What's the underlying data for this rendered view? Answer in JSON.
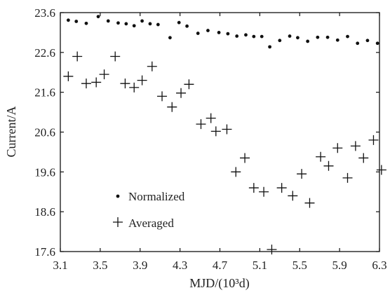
{
  "chart_data": {
    "type": "scatter",
    "title": "",
    "xlabel": "MJD/(10³d)",
    "ylabel": "Current/A",
    "xlim": [
      3.1,
      6.3
    ],
    "ylim": [
      17.6,
      23.6
    ],
    "xticks": [
      "3.1",
      "3.5",
      "3.9",
      "4.3",
      "4.7",
      "5.1",
      "5.5",
      "5.9",
      "6.3"
    ],
    "yticks": [
      "17.6",
      "18.6",
      "19.6",
      "20.6",
      "21.6",
      "22.6",
      "23.6"
    ],
    "grid": false,
    "legend": "lower-left",
    "series": [
      {
        "name": "Normalized",
        "marker": "dot",
        "points": [
          [
            3.18,
            23.41
          ],
          [
            3.26,
            23.38
          ],
          [
            3.36,
            23.33
          ],
          [
            3.48,
            23.5
          ],
          [
            3.58,
            23.39
          ],
          [
            3.68,
            23.34
          ],
          [
            3.76,
            23.32
          ],
          [
            3.84,
            23.27
          ],
          [
            3.92,
            23.39
          ],
          [
            4.0,
            23.32
          ],
          [
            4.08,
            23.3
          ],
          [
            4.2,
            22.97
          ],
          [
            4.29,
            23.35
          ],
          [
            4.37,
            23.26
          ],
          [
            4.48,
            23.08
          ],
          [
            4.58,
            23.15
          ],
          [
            4.69,
            23.1
          ],
          [
            4.78,
            23.07
          ],
          [
            4.87,
            23.01
          ],
          [
            4.96,
            23.04
          ],
          [
            5.04,
            23.0
          ],
          [
            5.12,
            23.0
          ],
          [
            5.2,
            22.74
          ],
          [
            5.3,
            22.9
          ],
          [
            5.4,
            23.01
          ],
          [
            5.48,
            22.97
          ],
          [
            5.58,
            22.88
          ],
          [
            5.68,
            22.98
          ],
          [
            5.78,
            22.98
          ],
          [
            5.88,
            22.91
          ],
          [
            5.98,
            23.0
          ],
          [
            6.08,
            22.83
          ],
          [
            6.18,
            22.9
          ],
          [
            6.28,
            22.83
          ]
        ]
      },
      {
        "name": "Averaged",
        "marker": "plus",
        "points": [
          [
            3.18,
            22.0
          ],
          [
            3.27,
            22.5
          ],
          [
            3.36,
            21.82
          ],
          [
            3.46,
            21.85
          ],
          [
            3.54,
            22.05
          ],
          [
            3.65,
            22.5
          ],
          [
            3.75,
            21.82
          ],
          [
            3.84,
            21.72
          ],
          [
            3.92,
            21.9
          ],
          [
            4.02,
            22.25
          ],
          [
            4.12,
            21.5
          ],
          [
            4.22,
            21.23
          ],
          [
            4.31,
            21.58
          ],
          [
            4.39,
            21.8
          ],
          [
            4.51,
            20.8
          ],
          [
            4.61,
            20.95
          ],
          [
            4.66,
            20.62
          ],
          [
            4.77,
            20.67
          ],
          [
            4.86,
            19.6
          ],
          [
            4.95,
            19.95
          ],
          [
            5.04,
            19.2
          ],
          [
            5.14,
            19.1
          ],
          [
            5.22,
            17.65
          ],
          [
            5.32,
            19.2
          ],
          [
            5.43,
            19.0
          ],
          [
            5.52,
            19.55
          ],
          [
            5.6,
            18.82
          ],
          [
            5.71,
            19.98
          ],
          [
            5.79,
            19.75
          ],
          [
            5.88,
            20.2
          ],
          [
            5.98,
            19.45
          ],
          [
            6.06,
            20.25
          ],
          [
            6.14,
            19.95
          ],
          [
            6.24,
            20.4
          ],
          [
            6.32,
            19.65
          ]
        ]
      }
    ]
  }
}
